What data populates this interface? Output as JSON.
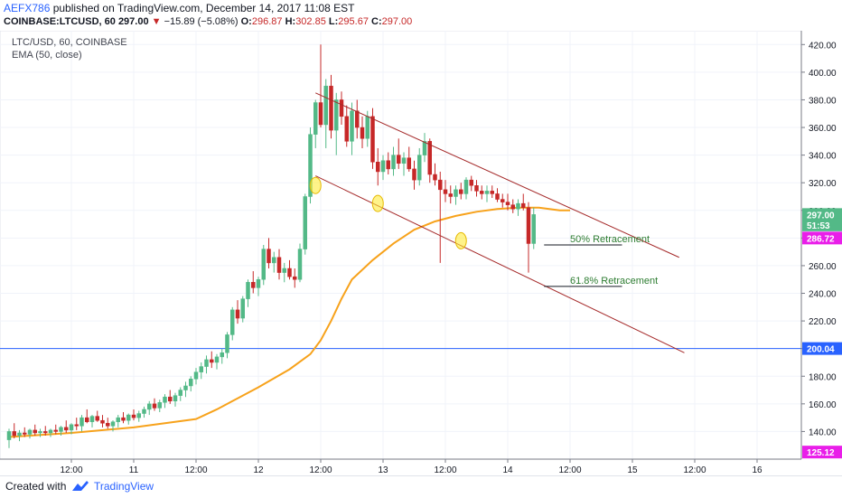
{
  "header": {
    "author": "AEFX786",
    "published_text": " published on TradingView.com, December 14, 2017 11:08 EST",
    "symbol": "COINBASE:LTCUSD, 60",
    "last": "297.00",
    "change": "−15.89 (−5.08%)",
    "o_label": "O:",
    "o": "296.87",
    "h_label": "H:",
    "h": "302.85",
    "l_label": "L:",
    "l": "295.67",
    "c_label": "C:",
    "c": "297.00"
  },
  "legend": {
    "line1": "LTC/USD, 60, COINBASE",
    "line2": "EMA (50, close)"
  },
  "footer": {
    "created": "Created with",
    "brand": "TradingView"
  },
  "colors": {
    "up": "#53b987",
    "down": "#c62828",
    "ema": "#f7a21b",
    "channel": "#a52a2a",
    "hline": "#2962ff",
    "price_badge": "#53b987",
    "low_badge": "#e91ee9",
    "blue_badge": "#2962ff",
    "retrace_text": "#2e7d32",
    "marker": "#ffeb3b"
  },
  "chart_data": {
    "type": "candlestick",
    "title": "LTC/USD, 60, COINBASE",
    "ylim": [
      120,
      430
    ],
    "y_ticks": [
      140,
      160,
      180,
      200,
      220,
      240,
      260,
      280,
      300,
      320,
      340,
      360,
      380,
      400,
      420
    ],
    "x_ticks": [
      {
        "t": 12,
        "label": "12:00"
      },
      {
        "t": 24,
        "label": "11"
      },
      {
        "t": 36,
        "label": "12:00"
      },
      {
        "t": 48,
        "label": "12"
      },
      {
        "t": 60,
        "label": "12:00"
      },
      {
        "t": 72,
        "label": "13"
      },
      {
        "t": 84,
        "label": "12:00"
      },
      {
        "t": 96,
        "label": "14"
      },
      {
        "t": 108,
        "label": "12:00"
      },
      {
        "t": 120,
        "label": "15"
      },
      {
        "t": 132,
        "label": "12:00"
      },
      {
        "t": 144,
        "label": "16"
      }
    ],
    "candles": [
      [
        134,
        142,
        128,
        140
      ],
      [
        140,
        146,
        135,
        137
      ],
      [
        137,
        141,
        133,
        139
      ],
      [
        139,
        143,
        136,
        138
      ],
      [
        138,
        142,
        135,
        141
      ],
      [
        141,
        145,
        137,
        139
      ],
      [
        139,
        142,
        136,
        140
      ],
      [
        140,
        144,
        137,
        139
      ],
      [
        139,
        142,
        136,
        141
      ],
      [
        141,
        145,
        138,
        140
      ],
      [
        140,
        144,
        137,
        143
      ],
      [
        143,
        148,
        139,
        141
      ],
      [
        141,
        146,
        138,
        145
      ],
      [
        145,
        150,
        141,
        144
      ],
      [
        144,
        152,
        140,
        150
      ],
      [
        150,
        156,
        146,
        147
      ],
      [
        147,
        152,
        143,
        151
      ],
      [
        151,
        155,
        147,
        148
      ],
      [
        148,
        152,
        143,
        146
      ],
      [
        146,
        150,
        142,
        144
      ],
      [
        144,
        148,
        140,
        147
      ],
      [
        147,
        152,
        143,
        150
      ],
      [
        150,
        154,
        146,
        148
      ],
      [
        148,
        153,
        145,
        152
      ],
      [
        152,
        156,
        148,
        150
      ],
      [
        150,
        155,
        147,
        153
      ],
      [
        153,
        158,
        150,
        156
      ],
      [
        156,
        162,
        152,
        160
      ],
      [
        160,
        164,
        155,
        157
      ],
      [
        157,
        163,
        154,
        161
      ],
      [
        161,
        167,
        157,
        165
      ],
      [
        165,
        170,
        160,
        162
      ],
      [
        162,
        168,
        158,
        166
      ],
      [
        166,
        172,
        162,
        170
      ],
      [
        170,
        176,
        165,
        173
      ],
      [
        173,
        180,
        169,
        178
      ],
      [
        178,
        186,
        174,
        183
      ],
      [
        183,
        190,
        178,
        187
      ],
      [
        187,
        195,
        182,
        192
      ],
      [
        192,
        198,
        186,
        190
      ],
      [
        190,
        196,
        185,
        194
      ],
      [
        194,
        200,
        189,
        197
      ],
      [
        197,
        212,
        193,
        210
      ],
      [
        210,
        230,
        206,
        228
      ],
      [
        228,
        235,
        218,
        222
      ],
      [
        222,
        238,
        219,
        236
      ],
      [
        236,
        250,
        230,
        248
      ],
      [
        248,
        256,
        240,
        244
      ],
      [
        244,
        252,
        238,
        250
      ],
      [
        250,
        275,
        246,
        272
      ],
      [
        272,
        280,
        258,
        262
      ],
      [
        262,
        270,
        255,
        266
      ],
      [
        266,
        272,
        250,
        255
      ],
      [
        255,
        262,
        248,
        258
      ],
      [
        258,
        264,
        250,
        252
      ],
      [
        252,
        258,
        244,
        250
      ],
      [
        250,
        276,
        248,
        272
      ],
      [
        272,
        312,
        268,
        310
      ],
      [
        310,
        360,
        305,
        355
      ],
      [
        355,
        380,
        345,
        378
      ],
      [
        378,
        420,
        360,
        362
      ],
      [
        362,
        395,
        345,
        390
      ],
      [
        390,
        398,
        352,
        358
      ],
      [
        358,
        385,
        340,
        380
      ],
      [
        380,
        386,
        362,
        368
      ],
      [
        368,
        376,
        346,
        350
      ],
      [
        350,
        378,
        340,
        372
      ],
      [
        372,
        380,
        352,
        360
      ],
      [
        360,
        368,
        345,
        352
      ],
      [
        352,
        372,
        346,
        368
      ],
      [
        368,
        374,
        330,
        335
      ],
      [
        335,
        345,
        318,
        328
      ],
      [
        328,
        340,
        322,
        336
      ],
      [
        336,
        342,
        326,
        330
      ],
      [
        330,
        346,
        325,
        340
      ],
      [
        340,
        352,
        330,
        334
      ],
      [
        334,
        342,
        325,
        338
      ],
      [
        338,
        346,
        328,
        330
      ],
      [
        330,
        336,
        315,
        322
      ],
      [
        322,
        345,
        318,
        340
      ],
      [
        340,
        356,
        335,
        350
      ],
      [
        350,
        352,
        320,
        326
      ],
      [
        326,
        334,
        318,
        322
      ],
      [
        322,
        328,
        262,
        315
      ],
      [
        315,
        322,
        306,
        312
      ],
      [
        312,
        318,
        305,
        310
      ],
      [
        310,
        318,
        304,
        315
      ],
      [
        315,
        320,
        308,
        312
      ],
      [
        312,
        324,
        308,
        322
      ],
      [
        322,
        325,
        314,
        318
      ],
      [
        318,
        322,
        310,
        314
      ],
      [
        314,
        318,
        308,
        312
      ],
      [
        312,
        318,
        306,
        314
      ],
      [
        314,
        318,
        309,
        312
      ],
      [
        312,
        316,
        306,
        308
      ],
      [
        308,
        312,
        302,
        306
      ],
      [
        306,
        312,
        300,
        304
      ],
      [
        304,
        308,
        298,
        301
      ],
      [
        301,
        308,
        296,
        305
      ],
      [
        305,
        312,
        300,
        302
      ],
      [
        302,
        306,
        255,
        276
      ],
      [
        276,
        302,
        272,
        297
      ]
    ],
    "ema": [
      [
        0,
        136
      ],
      [
        12,
        139
      ],
      [
        24,
        143
      ],
      [
        36,
        149
      ],
      [
        40,
        156
      ],
      [
        44,
        164
      ],
      [
        48,
        172
      ],
      [
        54,
        185
      ],
      [
        58,
        196
      ],
      [
        60,
        206
      ],
      [
        62,
        220
      ],
      [
        64,
        236
      ],
      [
        66,
        250
      ],
      [
        70,
        264
      ],
      [
        74,
        276
      ],
      [
        78,
        286
      ],
      [
        82,
        292
      ],
      [
        86,
        296
      ],
      [
        90,
        299
      ],
      [
        94,
        301
      ],
      [
        98,
        302
      ],
      [
        102,
        302
      ],
      [
        106,
        300
      ],
      [
        108,
        300
      ]
    ],
    "channel_upper": [
      [
        59,
        385
      ],
      [
        129,
        266
      ]
    ],
    "channel_lower": [
      [
        59,
        325
      ],
      [
        130,
        197
      ]
    ],
    "horizontal_line": 200.04,
    "markers": [
      [
        59,
        318
      ],
      [
        71,
        305
      ],
      [
        87,
        278
      ]
    ],
    "annotations": [
      {
        "text": "50% Retracement",
        "price": 275
      },
      {
        "text": "61.8% Retracement",
        "price": 245
      }
    ],
    "price_labels": {
      "last": "297.00",
      "timer": "51:53",
      "low": "286.72",
      "hline": "200.04",
      "bottom": "125.12"
    }
  }
}
